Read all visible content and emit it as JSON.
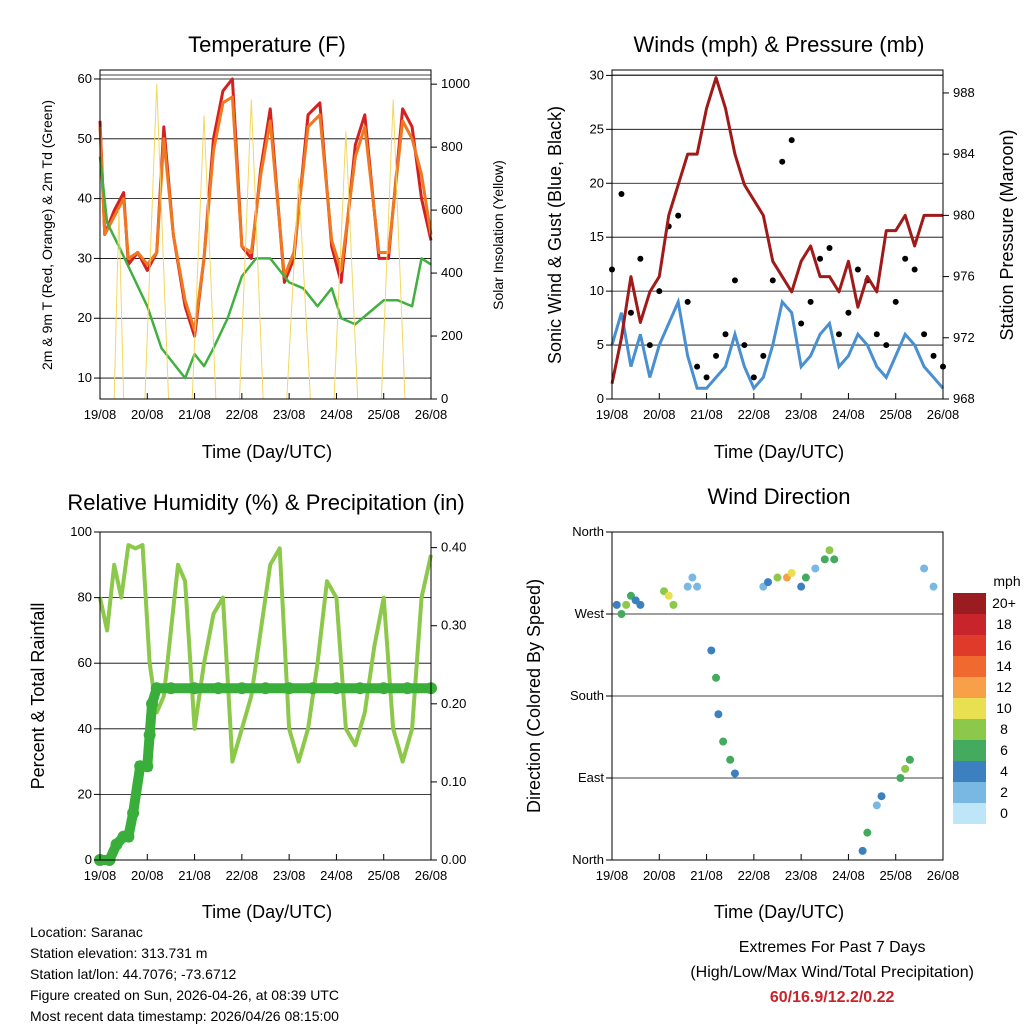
{
  "charts": {
    "temperature": {
      "title": "Temperature (F)",
      "ylabel_left": "2m & 9m T (Red, Orange) & 2m Td (Green)",
      "ylabel_right": "Solar Insolation (Yellow)",
      "xlabel": "Time (Day/UTC)"
    },
    "winds": {
      "title": "Winds (mph) & Pressure (mb)",
      "ylabel_left": "Sonic Wind & Gust (Blue, Black)",
      "ylabel_right": "Station Pressure (Maroon)",
      "xlabel": "Time (Day/UTC)"
    },
    "humidity": {
      "title": "Relative Humidity (%) & Precipitation (in)",
      "ylabel_left": "Percent & Total Rainfall",
      "xlabel": "Time (Day/UTC)"
    },
    "direction": {
      "title": "Wind Direction",
      "ylabel_left": "Direction (Colored By Speed)",
      "xlabel": "Time (Day/UTC)",
      "legend_title": "mph"
    }
  },
  "chart_data": [
    {
      "id": "temperature",
      "type": "line",
      "title": "Temperature (F)",
      "xlabel": "Time (Day/UTC)",
      "ylabel": "2m & 9m T (Red, Orange) & 2m Td (Green)",
      "y2label": "Solar Insolation (Yellow)",
      "x_ticks": [
        "19/08",
        "20/08",
        "21/08",
        "22/08",
        "23/08",
        "24/08",
        "25/08",
        "26/08"
      ],
      "xlim": [
        0,
        7
      ],
      "ylim": [
        6.5,
        61.5
      ],
      "y_ticks": [
        "10",
        "20",
        "30",
        "40",
        "50",
        "60"
      ],
      "y2lim": [
        0,
        1045
      ],
      "y2_ticks": [
        "0",
        "200",
        "400",
        "600",
        "800",
        "1000"
      ],
      "series": [
        {
          "name": "2m T",
          "color": "#d42020",
          "x": [
            0,
            0.1,
            0.3,
            0.5,
            0.6,
            0.8,
            1.0,
            1.2,
            1.35,
            1.55,
            1.8,
            2.0,
            2.2,
            2.4,
            2.6,
            2.8,
            3.0,
            3.2,
            3.4,
            3.6,
            3.9,
            4.1,
            4.4,
            4.65,
            4.9,
            5.1,
            5.4,
            5.6,
            5.9,
            6.1,
            6.4,
            6.6,
            6.8,
            7.0
          ],
          "values": [
            53,
            34,
            38,
            41,
            29,
            31,
            28,
            31,
            52,
            34,
            22,
            17,
            30,
            50,
            58,
            60,
            32,
            30,
            45,
            55,
            26,
            30,
            54,
            56,
            32,
            26,
            49,
            54,
            30,
            30,
            55,
            52,
            40,
            33
          ]
        },
        {
          "name": "9m T",
          "color": "#f07820",
          "x": [
            0,
            0.1,
            0.3,
            0.5,
            0.6,
            0.8,
            1.0,
            1.2,
            1.35,
            1.55,
            1.8,
            2.0,
            2.2,
            2.4,
            2.6,
            2.8,
            3.0,
            3.2,
            3.4,
            3.6,
            3.9,
            4.1,
            4.4,
            4.65,
            4.9,
            5.1,
            5.4,
            5.6,
            5.9,
            6.1,
            6.4,
            6.6,
            6.8,
            7.0
          ],
          "values": [
            52,
            34,
            37,
            40,
            30,
            31,
            29,
            31,
            50,
            34,
            23,
            18,
            30,
            48,
            56,
            57,
            32,
            31,
            44,
            53,
            27,
            31,
            52,
            54,
            33,
            28,
            47,
            52,
            31,
            31,
            53,
            50,
            44,
            34
          ]
        },
        {
          "name": "2m Td",
          "color": "#40b040",
          "x": [
            0,
            0.15,
            0.4,
            0.7,
            1.0,
            1.3,
            1.6,
            1.8,
            2.0,
            2.2,
            2.4,
            2.7,
            3.0,
            3.3,
            3.6,
            3.8,
            4.0,
            4.3,
            4.6,
            4.9,
            5.1,
            5.4,
            5.7,
            6.0,
            6.3,
            6.6,
            6.8,
            7.0
          ],
          "values": [
            47,
            36,
            32,
            27,
            22,
            15,
            12,
            10,
            14,
            12,
            15,
            20,
            27,
            30,
            30,
            28,
            26,
            25,
            22,
            25,
            20,
            19,
            21,
            23,
            23,
            22,
            30,
            29
          ]
        },
        {
          "name": "Solar Insolation",
          "axis": "right",
          "color": "#f2d860",
          "x": [
            0.3,
            0.4,
            0.5,
            0.95,
            1.2,
            1.45,
            1.95,
            2.2,
            2.45,
            2.95,
            3.2,
            3.45,
            3.95,
            4.2,
            4.45,
            4.95,
            5.2,
            5.45,
            5.95,
            6.2,
            6.45,
            6.95
          ],
          "values": [
            0,
            600,
            0,
            0,
            1000,
            0,
            0,
            900,
            0,
            0,
            950,
            0,
            0,
            700,
            0,
            0,
            850,
            0,
            0,
            950,
            0,
            0
          ]
        }
      ]
    },
    {
      "id": "winds",
      "type": "scatter",
      "title": "Winds (mph) & Pressure (mb)",
      "xlabel": "Time (Day/UTC)",
      "ylabel": "Sonic Wind & Gust (Blue, Black)",
      "y2label": "Station Pressure (Maroon)",
      "x_ticks": [
        "19/08",
        "20/08",
        "21/08",
        "22/08",
        "23/08",
        "24/08",
        "25/08",
        "26/08"
      ],
      "xlim": [
        0,
        7
      ],
      "ylim": [
        0,
        30.5
      ],
      "y_ticks": [
        "0",
        "5",
        "10",
        "15",
        "20",
        "25",
        "30"
      ],
      "y2lim": [
        968,
        989.5
      ],
      "y2_ticks": [
        "968",
        "972",
        "976",
        "980",
        "984",
        "988"
      ],
      "series": [
        {
          "name": "Sonic Wind",
          "color": "#4a90d0",
          "x": [
            0,
            0.2,
            0.4,
            0.6,
            0.8,
            1.0,
            1.2,
            1.4,
            1.6,
            1.8,
            2.0,
            2.2,
            2.4,
            2.6,
            2.8,
            3.0,
            3.2,
            3.4,
            3.6,
            3.8,
            4.0,
            4.2,
            4.4,
            4.6,
            4.8,
            5.0,
            5.2,
            5.4,
            5.6,
            5.8,
            6.0,
            6.2,
            6.4,
            6.6,
            6.8,
            7.0
          ],
          "values": [
            5,
            8,
            3,
            6,
            2,
            5,
            7,
            9,
            4,
            1,
            1,
            2,
            3,
            6,
            3,
            1,
            2,
            5,
            9,
            8,
            3,
            4,
            6,
            7,
            3,
            4,
            6,
            5,
            3,
            2,
            4,
            6,
            5,
            3,
            2,
            1
          ]
        },
        {
          "name": "Gust",
          "color": "#000000",
          "x": [
            0,
            0.2,
            0.4,
            0.6,
            0.8,
            1.0,
            1.2,
            1.4,
            1.6,
            1.8,
            2.0,
            2.2,
            2.4,
            2.6,
            2.8,
            3.0,
            3.2,
            3.4,
            3.6,
            3.8,
            4.0,
            4.2,
            4.4,
            4.6,
            4.8,
            5.0,
            5.2,
            5.4,
            5.6,
            5.8,
            6.0,
            6.2,
            6.4,
            6.6,
            6.8,
            7.0
          ],
          "values": [
            12,
            19,
            8,
            13,
            5,
            10,
            16,
            17,
            9,
            3,
            2,
            4,
            6,
            11,
            5,
            2,
            4,
            11,
            22,
            24,
            7,
            9,
            13,
            14,
            6,
            8,
            12,
            11,
            6,
            5,
            9,
            13,
            12,
            6,
            4,
            3
          ]
        },
        {
          "name": "Station Pressure",
          "axis": "right",
          "color": "#a01a1a",
          "x": [
            0,
            0.2,
            0.4,
            0.6,
            0.8,
            1.0,
            1.2,
            1.4,
            1.6,
            1.8,
            2.0,
            2.1,
            2.2,
            2.4,
            2.6,
            2.8,
            3.0,
            3.2,
            3.4,
            3.6,
            3.8,
            4.0,
            4.2,
            4.4,
            4.6,
            4.8,
            5.0,
            5.2,
            5.4,
            5.6,
            5.8,
            6.0,
            6.2,
            6.4,
            6.6,
            6.8,
            7.0
          ],
          "values": [
            969,
            972,
            976,
            973,
            975,
            976,
            980,
            982,
            984,
            984,
            987,
            988,
            989,
            987,
            984,
            982,
            981,
            980,
            977,
            976,
            975,
            977,
            978,
            976,
            976,
            975,
            977,
            974,
            976,
            975,
            979,
            979,
            980,
            978,
            980,
            980,
            980
          ]
        }
      ]
    },
    {
      "id": "humidity",
      "type": "line",
      "title": "Relative Humidity (%) & Precipitation (in)",
      "xlabel": "Time (Day/UTC)",
      "ylabel": "Percent & Total Rainfall",
      "x_ticks": [
        "19/08",
        "20/08",
        "21/08",
        "22/08",
        "23/08",
        "24/08",
        "25/08",
        "26/08"
      ],
      "xlim": [
        0,
        7
      ],
      "ylim": [
        0,
        100
      ],
      "y_ticks": [
        "0",
        "20",
        "40",
        "60",
        "80",
        "100"
      ],
      "y2lim": [
        0,
        0.42
      ],
      "y2_ticks": [
        "0.00",
        "0.10",
        "0.20",
        "0.30",
        "0.40"
      ],
      "series": [
        {
          "name": "Relative Humidity",
          "color": "#8cc84a",
          "x": [
            0,
            0.15,
            0.3,
            0.45,
            0.6,
            0.75,
            0.9,
            1.05,
            1.2,
            1.35,
            1.5,
            1.65,
            1.8,
            2.0,
            2.2,
            2.4,
            2.6,
            2.8,
            3.0,
            3.2,
            3.4,
            3.6,
            3.8,
            4.0,
            4.2,
            4.4,
            4.6,
            4.8,
            5.0,
            5.2,
            5.4,
            5.6,
            5.8,
            6.0,
            6.2,
            6.4,
            6.6,
            6.8,
            7.0
          ],
          "values": [
            80,
            70,
            90,
            80,
            96,
            95,
            96,
            60,
            45,
            50,
            70,
            90,
            85,
            40,
            60,
            75,
            80,
            30,
            40,
            50,
            70,
            90,
            95,
            40,
            30,
            40,
            60,
            85,
            80,
            40,
            35,
            45,
            65,
            80,
            40,
            30,
            40,
            80,
            93
          ]
        },
        {
          "name": "Total Precipitation",
          "axis": "right",
          "color": "#3aae3a",
          "x": [
            0,
            0.2,
            0.35,
            0.5,
            0.6,
            0.7,
            0.85,
            1.0,
            1.05,
            1.1,
            1.2,
            1.5,
            2.0,
            2.5,
            3.0,
            3.5,
            4.0,
            4.5,
            5.0,
            5.5,
            6.0,
            6.5,
            7.0
          ],
          "values": [
            0,
            0,
            0.02,
            0.03,
            0.03,
            0.06,
            0.12,
            0.12,
            0.16,
            0.2,
            0.22,
            0.22,
            0.22,
            0.22,
            0.22,
            0.22,
            0.22,
            0.22,
            0.22,
            0.22,
            0.22,
            0.22,
            0.22
          ]
        }
      ]
    },
    {
      "id": "direction",
      "type": "scatter",
      "title": "Wind Direction",
      "xlabel": "Time (Day/UTC)",
      "ylabel": "Direction (Colored By Speed)",
      "x_ticks": [
        "19/08",
        "20/08",
        "21/08",
        "22/08",
        "23/08",
        "24/08",
        "25/08",
        "26/08"
      ],
      "xlim": [
        0,
        7
      ],
      "y_ticks": [
        "North",
        "East",
        "South",
        "West",
        "North"
      ],
      "ylim": [
        0,
        360
      ],
      "legend_title": "mph",
      "legend_labels": [
        "20+",
        "18",
        "16",
        "14",
        "12",
        "10",
        "8",
        "6",
        "4",
        "2",
        "0"
      ],
      "legend_colors": [
        "#9b1c20",
        "#c8242c",
        "#e03a2a",
        "#f06a30",
        "#f8a048",
        "#e8e050",
        "#8cc84a",
        "#44aa5e",
        "#3c80c0",
        "#78b8e2",
        "#bfe6f8"
      ],
      "series": [
        {
          "name": "Direction",
          "x": [
            0.1,
            0.2,
            0.3,
            0.4,
            0.5,
            0.6,
            1.1,
            1.2,
            1.3,
            1.6,
            1.7,
            1.8,
            2.1,
            2.2,
            2.25,
            2.35,
            2.5,
            2.6,
            3.2,
            3.3,
            3.5,
            3.7,
            3.8,
            4.0,
            4.1,
            4.3,
            4.5,
            4.6,
            4.7,
            5.3,
            5.4,
            5.6,
            5.7,
            6.1,
            6.2,
            6.3,
            6.6,
            6.8
          ],
          "values": [
            280,
            270,
            280,
            290,
            285,
            280,
            295,
            290,
            280,
            300,
            310,
            300,
            230,
            200,
            160,
            130,
            110,
            95,
            300,
            305,
            310,
            310,
            315,
            300,
            310,
            320,
            330,
            340,
            330,
            10,
            30,
            60,
            70,
            90,
            100,
            110,
            320,
            300
          ],
          "speeds": [
            5,
            7,
            9,
            6,
            4,
            5,
            8,
            10,
            9,
            3,
            2,
            3,
            4,
            6,
            5,
            7,
            6,
            4,
            3,
            4,
            8,
            12,
            10,
            5,
            7,
            3,
            6,
            8,
            7,
            4,
            6,
            3,
            5,
            7,
            9,
            6,
            3,
            2
          ]
        }
      ]
    }
  ],
  "info": {
    "location": "Location: Saranac",
    "elevation": "Station elevation: 313.731 m",
    "latlon": "Station lat/lon: 44.7076; -73.6712",
    "created": "Figure created on Sun, 2026-04-26, at 08:39 UTC",
    "recent": "Most recent data timestamp: 2026/04/26 08:15:00"
  },
  "extremes": {
    "title": "Extremes For Past 7 Days",
    "subtitle": "(High/Low/Max Wind/Total Precipitation)",
    "values": "60/16.9/12.2/0.22"
  }
}
